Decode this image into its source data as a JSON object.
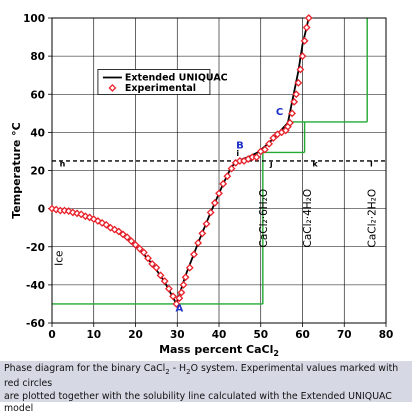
{
  "chart_data": {
    "type": "line",
    "xlabel": "Mass percent CaCl",
    "xlabel_sub": "2",
    "ylabel": "Temperature °C",
    "xlim": [
      0,
      80
    ],
    "ylim": [
      -60,
      100
    ],
    "x_ticks": [
      "0",
      "10",
      "20",
      "30",
      "40",
      "50",
      "60",
      "70",
      "80"
    ],
    "y_ticks": [
      "-60",
      "-40",
      "-20",
      "0",
      "20",
      "40",
      "60",
      "80",
      "100"
    ],
    "grid": true,
    "legend_position": "top-left",
    "series": [
      {
        "name": "Extended UNIQUAC",
        "style": "line",
        "color": "#000000",
        "x": [
          0,
          3,
          6,
          9,
          12,
          15,
          18,
          21,
          24,
          27,
          29.8,
          32,
          35,
          38,
          41,
          43,
          44.5,
          47,
          49.3,
          52,
          56.5,
          57.5,
          59,
          60,
          61.5
        ],
        "y": [
          0,
          -1,
          -2.6,
          -4.8,
          -7.5,
          -11,
          -15.5,
          -21.5,
          -29,
          -38.5,
          -50,
          -35,
          -18,
          -2,
          13,
          22,
          25,
          27,
          29.5,
          34.5,
          45,
          56,
          72,
          86,
          100
        ]
      },
      {
        "name": "Experimental",
        "style": "marker",
        "color": "#e8202a",
        "x": [
          0,
          1,
          2,
          3,
          4,
          5,
          6,
          7,
          8,
          9,
          10,
          11,
          12,
          13,
          14,
          15,
          16,
          17,
          18,
          19,
          20,
          21,
          22,
          23,
          24,
          25,
          26,
          27,
          28,
          29,
          29.8,
          30.5,
          31,
          31.5,
          32,
          33,
          34,
          35,
          36,
          37,
          38,
          39,
          40,
          41,
          42,
          43,
          44,
          45,
          46,
          47,
          48,
          49,
          50,
          51,
          52,
          53,
          54,
          55,
          56,
          56.5,
          57,
          57.5,
          58,
          58.5,
          59,
          59.5,
          60,
          60.5,
          61,
          61.5
        ],
        "y": [
          0,
          -0.5,
          -1,
          -1,
          -1.3,
          -2,
          -2.5,
          -3,
          -4,
          -4.6,
          -5.5,
          -6.5,
          -7.5,
          -8.5,
          -10,
          -11,
          -12,
          -13.5,
          -15,
          -17,
          -19,
          -21,
          -23,
          -26,
          -29,
          -31,
          -35,
          -38,
          -42,
          -46,
          -50,
          -47,
          -44,
          -40,
          -36,
          -31,
          -24,
          -18,
          -13,
          -8,
          -2,
          3,
          8,
          13,
          17,
          21,
          24,
          25,
          25,
          26,
          27,
          27,
          30,
          31,
          34,
          37,
          39,
          40,
          41,
          43,
          45,
          50,
          56,
          60,
          66,
          73,
          80,
          88,
          95,
          100
        ]
      }
    ],
    "annotations": [
      {
        "text": "A",
        "x": 30.5,
        "y": -54,
        "color": "#1a2fc8"
      },
      {
        "text": "B",
        "x": 45,
        "y": 31.5,
        "color": "#1a2fc8"
      },
      {
        "text": "C",
        "x": 54.5,
        "y": 49,
        "color": "#1a2fc8"
      },
      {
        "text": "h",
        "x": 2.5,
        "y": 22,
        "color": "#000000"
      },
      {
        "text": "i",
        "x": 44.5,
        "y": 27.5,
        "color": "#000000"
      },
      {
        "text": "j",
        "x": 52.5,
        "y": 22,
        "color": "#000000"
      },
      {
        "text": "k",
        "x": 63,
        "y": 22,
        "color": "#000000"
      },
      {
        "text": "l",
        "x": 76.5,
        "y": 22,
        "color": "#000000"
      }
    ],
    "phase_labels": [
      {
        "text": "Ice",
        "x": 2.5,
        "y": -26
      },
      {
        "text": "CaCl₂·6H₂O",
        "x": 51.5,
        "y": -5
      },
      {
        "text": "CaCl₂·4H₂O",
        "x": 62,
        "y": -5
      },
      {
        "text": "CaCl₂·2H₂O",
        "x": 77.5,
        "y": -5
      }
    ],
    "reference_line": {
      "y": 25,
      "style": "dashed"
    },
    "phase_boundaries": {
      "color": "#22aa33",
      "lines": [
        {
          "points": [
            [
              0,
              -50
            ],
            [
              50.5,
              -50
            ]
          ]
        },
        {
          "points": [
            [
              50.5,
              -50
            ],
            [
              50.5,
              29.5
            ]
          ]
        },
        {
          "points": [
            [
              49.3,
              29.5
            ],
            [
              60.5,
              29.5
            ]
          ]
        },
        {
          "points": [
            [
              60.5,
              29.5
            ],
            [
              60.5,
              45.5
            ]
          ]
        },
        {
          "points": [
            [
              57,
              45.5
            ],
            [
              75.5,
              45.5
            ]
          ]
        },
        {
          "points": [
            [
              75.5,
              45.5
            ],
            [
              75.5,
              100
            ]
          ]
        }
      ]
    }
  },
  "caption": {
    "line1_before": "Phase diagram for the binary CaCl",
    "line1_sub": "2",
    "line1_after": " - H",
    "line1_sub2": "2",
    "line1_end": "O system. Experimental values marked with red circles",
    "line2": "are plotted together with the solubility line calculated with the Extended UNIQUAC model"
  }
}
